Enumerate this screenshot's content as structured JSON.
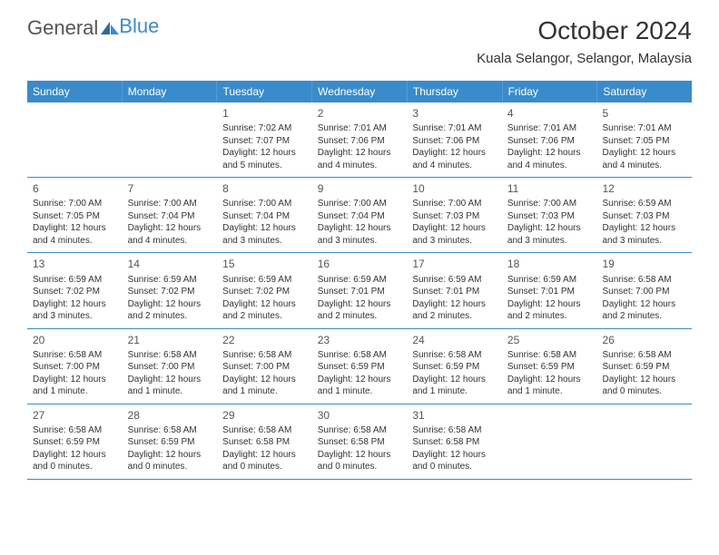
{
  "logo": {
    "text1": "General",
    "text2": "Blue"
  },
  "title": "October 2024",
  "location": "Kuala Selangor, Selangor, Malaysia",
  "weekdays": [
    "Sunday",
    "Monday",
    "Tuesday",
    "Wednesday",
    "Thursday",
    "Friday",
    "Saturday"
  ],
  "header_color": "#3a8bcc",
  "divider_color": "#3a8bcc",
  "text_color": "#333333",
  "weeks": [
    [
      null,
      null,
      {
        "n": "1",
        "sr": "Sunrise: 7:02 AM",
        "ss": "Sunset: 7:07 PM",
        "d1": "Daylight: 12 hours",
        "d2": "and 5 minutes."
      },
      {
        "n": "2",
        "sr": "Sunrise: 7:01 AM",
        "ss": "Sunset: 7:06 PM",
        "d1": "Daylight: 12 hours",
        "d2": "and 4 minutes."
      },
      {
        "n": "3",
        "sr": "Sunrise: 7:01 AM",
        "ss": "Sunset: 7:06 PM",
        "d1": "Daylight: 12 hours",
        "d2": "and 4 minutes."
      },
      {
        "n": "4",
        "sr": "Sunrise: 7:01 AM",
        "ss": "Sunset: 7:06 PM",
        "d1": "Daylight: 12 hours",
        "d2": "and 4 minutes."
      },
      {
        "n": "5",
        "sr": "Sunrise: 7:01 AM",
        "ss": "Sunset: 7:05 PM",
        "d1": "Daylight: 12 hours",
        "d2": "and 4 minutes."
      }
    ],
    [
      {
        "n": "6",
        "sr": "Sunrise: 7:00 AM",
        "ss": "Sunset: 7:05 PM",
        "d1": "Daylight: 12 hours",
        "d2": "and 4 minutes."
      },
      {
        "n": "7",
        "sr": "Sunrise: 7:00 AM",
        "ss": "Sunset: 7:04 PM",
        "d1": "Daylight: 12 hours",
        "d2": "and 4 minutes."
      },
      {
        "n": "8",
        "sr": "Sunrise: 7:00 AM",
        "ss": "Sunset: 7:04 PM",
        "d1": "Daylight: 12 hours",
        "d2": "and 3 minutes."
      },
      {
        "n": "9",
        "sr": "Sunrise: 7:00 AM",
        "ss": "Sunset: 7:04 PM",
        "d1": "Daylight: 12 hours",
        "d2": "and 3 minutes."
      },
      {
        "n": "10",
        "sr": "Sunrise: 7:00 AM",
        "ss": "Sunset: 7:03 PM",
        "d1": "Daylight: 12 hours",
        "d2": "and 3 minutes."
      },
      {
        "n": "11",
        "sr": "Sunrise: 7:00 AM",
        "ss": "Sunset: 7:03 PM",
        "d1": "Daylight: 12 hours",
        "d2": "and 3 minutes."
      },
      {
        "n": "12",
        "sr": "Sunrise: 6:59 AM",
        "ss": "Sunset: 7:03 PM",
        "d1": "Daylight: 12 hours",
        "d2": "and 3 minutes."
      }
    ],
    [
      {
        "n": "13",
        "sr": "Sunrise: 6:59 AM",
        "ss": "Sunset: 7:02 PM",
        "d1": "Daylight: 12 hours",
        "d2": "and 3 minutes."
      },
      {
        "n": "14",
        "sr": "Sunrise: 6:59 AM",
        "ss": "Sunset: 7:02 PM",
        "d1": "Daylight: 12 hours",
        "d2": "and 2 minutes."
      },
      {
        "n": "15",
        "sr": "Sunrise: 6:59 AM",
        "ss": "Sunset: 7:02 PM",
        "d1": "Daylight: 12 hours",
        "d2": "and 2 minutes."
      },
      {
        "n": "16",
        "sr": "Sunrise: 6:59 AM",
        "ss": "Sunset: 7:01 PM",
        "d1": "Daylight: 12 hours",
        "d2": "and 2 minutes."
      },
      {
        "n": "17",
        "sr": "Sunrise: 6:59 AM",
        "ss": "Sunset: 7:01 PM",
        "d1": "Daylight: 12 hours",
        "d2": "and 2 minutes."
      },
      {
        "n": "18",
        "sr": "Sunrise: 6:59 AM",
        "ss": "Sunset: 7:01 PM",
        "d1": "Daylight: 12 hours",
        "d2": "and 2 minutes."
      },
      {
        "n": "19",
        "sr": "Sunrise: 6:58 AM",
        "ss": "Sunset: 7:00 PM",
        "d1": "Daylight: 12 hours",
        "d2": "and 2 minutes."
      }
    ],
    [
      {
        "n": "20",
        "sr": "Sunrise: 6:58 AM",
        "ss": "Sunset: 7:00 PM",
        "d1": "Daylight: 12 hours",
        "d2": "and 1 minute."
      },
      {
        "n": "21",
        "sr": "Sunrise: 6:58 AM",
        "ss": "Sunset: 7:00 PM",
        "d1": "Daylight: 12 hours",
        "d2": "and 1 minute."
      },
      {
        "n": "22",
        "sr": "Sunrise: 6:58 AM",
        "ss": "Sunset: 7:00 PM",
        "d1": "Daylight: 12 hours",
        "d2": "and 1 minute."
      },
      {
        "n": "23",
        "sr": "Sunrise: 6:58 AM",
        "ss": "Sunset: 6:59 PM",
        "d1": "Daylight: 12 hours",
        "d2": "and 1 minute."
      },
      {
        "n": "24",
        "sr": "Sunrise: 6:58 AM",
        "ss": "Sunset: 6:59 PM",
        "d1": "Daylight: 12 hours",
        "d2": "and 1 minute."
      },
      {
        "n": "25",
        "sr": "Sunrise: 6:58 AM",
        "ss": "Sunset: 6:59 PM",
        "d1": "Daylight: 12 hours",
        "d2": "and 1 minute."
      },
      {
        "n": "26",
        "sr": "Sunrise: 6:58 AM",
        "ss": "Sunset: 6:59 PM",
        "d1": "Daylight: 12 hours",
        "d2": "and 0 minutes."
      }
    ],
    [
      {
        "n": "27",
        "sr": "Sunrise: 6:58 AM",
        "ss": "Sunset: 6:59 PM",
        "d1": "Daylight: 12 hours",
        "d2": "and 0 minutes."
      },
      {
        "n": "28",
        "sr": "Sunrise: 6:58 AM",
        "ss": "Sunset: 6:59 PM",
        "d1": "Daylight: 12 hours",
        "d2": "and 0 minutes."
      },
      {
        "n": "29",
        "sr": "Sunrise: 6:58 AM",
        "ss": "Sunset: 6:58 PM",
        "d1": "Daylight: 12 hours",
        "d2": "and 0 minutes."
      },
      {
        "n": "30",
        "sr": "Sunrise: 6:58 AM",
        "ss": "Sunset: 6:58 PM",
        "d1": "Daylight: 12 hours",
        "d2": "and 0 minutes."
      },
      {
        "n": "31",
        "sr": "Sunrise: 6:58 AM",
        "ss": "Sunset: 6:58 PM",
        "d1": "Daylight: 12 hours",
        "d2": "and 0 minutes."
      },
      null,
      null
    ]
  ]
}
